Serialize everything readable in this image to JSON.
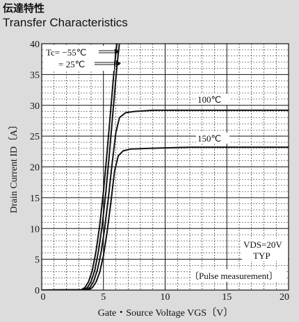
{
  "header": {
    "title_jp": "伝達特性",
    "title_en": "Transfer Characteristics"
  },
  "chart_data": {
    "type": "line",
    "xlabel": "Gate・Source Voltage  VGS〔V〕",
    "ylabel": "Drain Current  ID〔A〕",
    "xlim": [
      0,
      20
    ],
    "ylim": [
      0,
      40
    ],
    "x_ticks": [
      "0",
      "5",
      "10",
      "15",
      "20"
    ],
    "y_ticks": [
      "0",
      "5",
      "10",
      "15",
      "20",
      "25",
      "30",
      "35",
      "40"
    ],
    "grid": true,
    "series": [
      {
        "name": "Tc= −55℃",
        "x": [
          0,
          3.2,
          3.5,
          3.8,
          4.1,
          4.4,
          4.7,
          5.0,
          5.3,
          5.6,
          5.9,
          6.2
        ],
        "y": [
          0,
          0.05,
          0.4,
          1.4,
          3.2,
          6.3,
          10.5,
          16.0,
          22.5,
          29.5,
          36.5,
          42
        ]
      },
      {
        "name": "25℃",
        "x": [
          0,
          3.4,
          3.7,
          4.0,
          4.3,
          4.6,
          4.9,
          5.2,
          5.5,
          5.8,
          6.1,
          6.4
        ],
        "y": [
          0,
          0.05,
          0.4,
          1.4,
          3.2,
          6.3,
          10.5,
          16.0,
          22.5,
          29.5,
          36.5,
          42
        ]
      },
      {
        "name": "100℃",
        "x": [
          0,
          3.6,
          3.9,
          4.2,
          4.5,
          4.8,
          5.1,
          5.4,
          5.7,
          6.0,
          6.3,
          6.8,
          7.5,
          9,
          12,
          16,
          20
        ],
        "y": [
          0,
          0.05,
          0.4,
          1.4,
          3.2,
          6.0,
          10.0,
          15.0,
          20.5,
          25.5,
          28.0,
          28.8,
          29.0,
          29.2,
          29.2,
          29.2,
          29.2
        ]
      },
      {
        "name": "150℃",
        "x": [
          0,
          3.8,
          4.1,
          4.4,
          4.7,
          5.0,
          5.3,
          5.6,
          5.9,
          6.2,
          6.6,
          7.2,
          8.5,
          12,
          16,
          20
        ],
        "y": [
          0,
          0.05,
          0.4,
          1.3,
          2.9,
          5.6,
          9.5,
          14.2,
          19.3,
          21.8,
          22.6,
          22.9,
          23.0,
          23.2,
          23.2,
          23.2
        ]
      }
    ],
    "annotations": {
      "tc_label": "Tc= −55℃",
      "t25_label": "=  25℃",
      "t100_label": "100℃",
      "t150_label": "150℃",
      "vds": "VDS=20V",
      "typ": "TYP",
      "pulse": "〔Pulse measurement〕"
    }
  }
}
